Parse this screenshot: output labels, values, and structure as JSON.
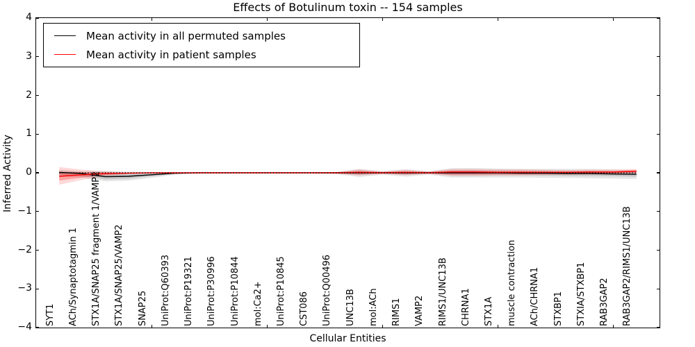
{
  "chart_data": {
    "type": "line",
    "title": "Effects of Botulinum toxin -- 154 samples",
    "xlabel": "Cellular Entities",
    "ylabel": "Inferred Activity",
    "xlim": [
      0,
      27
    ],
    "ylim": [
      -4,
      4
    ],
    "grid": false,
    "legend_position": "upper left",
    "ytick_values": [
      4,
      3,
      2,
      1,
      0,
      -1,
      -2,
      -3,
      -4
    ],
    "ytick_labels": [
      "4",
      "3",
      "2",
      "1",
      "0",
      "−1",
      "−2",
      "−3",
      "−4"
    ],
    "xtick_values": [
      5,
      10,
      15,
      20,
      25
    ],
    "zero_line": {
      "value": 0,
      "style": "dotted",
      "color": "#000000"
    },
    "categories": [
      "SYT1",
      "ACh/Synaptotagmin 1",
      "STX1A/SNAP25 fragment 1/VAMP2",
      "STX1A/SNAP25/VAMP2",
      "SNAP25",
      "UniProt:Q60393",
      "UniProt:P19321",
      "UniProt:P30996",
      "UniProt:P10844",
      "mol:Ca2+",
      "UniProt:P10845",
      "CST086",
      "UniProt:Q00496",
      "UNC13B",
      "mol:ACh",
      "RIMS1",
      "VAMP2",
      "RIMS1/UNC13B",
      "CHRNA1",
      "STX1A",
      "muscle contraction",
      "ACh/CHRNA1",
      "STXBP1",
      "STXIA/STXBP1",
      "RAB3GAP2",
      "RAB3GAP2/RIMS1/UNC13B"
    ],
    "series": [
      {
        "name": "Mean activity in all permuted samples",
        "color": "#000000",
        "band_color": "#000000",
        "band_opacity_outer": 0.1,
        "band_opacity_inner": 0.13,
        "mean": [
          0.01,
          -0.02,
          -0.1,
          -0.09,
          -0.05,
          -0.01,
          0,
          0,
          0,
          0,
          0,
          0,
          0,
          0,
          0,
          0,
          0,
          0,
          0,
          0,
          -0.01,
          -0.01,
          -0.02,
          -0.02,
          -0.03,
          -0.04
        ],
        "band_outer": {
          "upper": [
            0.08,
            0.04,
            0.05,
            0.03,
            0.02,
            0.01,
            0.01,
            0.01,
            0.01,
            0.01,
            0.01,
            0.01,
            0.02,
            0.1,
            0.04,
            0.09,
            0.04,
            0.12,
            0.12,
            0.11,
            0.1,
            0.1,
            0.1,
            0.1,
            0.09,
            0.06
          ],
          "lower": [
            -0.1,
            -0.12,
            -0.22,
            -0.2,
            -0.13,
            -0.05,
            -0.02,
            -0.01,
            -0.01,
            -0.01,
            -0.01,
            -0.02,
            -0.03,
            -0.11,
            -0.05,
            -0.1,
            -0.05,
            -0.12,
            -0.12,
            -0.12,
            -0.12,
            -0.13,
            -0.13,
            -0.14,
            -0.15,
            -0.16
          ]
        },
        "band_inner": {
          "upper": [
            0.04,
            0.01,
            -0.03,
            -0.03,
            -0.02,
            0,
            0,
            0,
            0,
            0,
            0,
            0,
            0.01,
            0.05,
            0.02,
            0.04,
            0.02,
            0.06,
            0.06,
            0.05,
            0.05,
            0.05,
            0.04,
            0.04,
            0.03,
            0.01
          ],
          "lower": [
            -0.05,
            -0.08,
            -0.17,
            -0.15,
            -0.09,
            -0.03,
            -0.01,
            0,
            0,
            0,
            0,
            -0.01,
            -0.02,
            -0.05,
            -0.02,
            -0.05,
            -0.02,
            -0.06,
            -0.06,
            -0.06,
            -0.06,
            -0.07,
            -0.08,
            -0.08,
            -0.09,
            -0.1
          ]
        }
      },
      {
        "name": "Mean activity in patient samples",
        "color": "#ff0000",
        "band_color": "#ff0000",
        "band_opacity_outer": 0.15,
        "band_opacity_inner": 0.25,
        "mean": [
          -0.09,
          -0.05,
          -0.02,
          -0.01,
          0,
          0,
          0,
          0,
          0,
          0,
          0,
          0,
          0,
          0.01,
          0,
          0.01,
          0,
          0.02,
          0.02,
          0.01,
          0.01,
          0.01,
          0.01,
          0.02,
          0.02,
          0.04
        ],
        "band_outer": {
          "upper": [
            0.15,
            0.08,
            0.03,
            0.01,
            0.01,
            0.01,
            0.01,
            0.01,
            0.01,
            0.01,
            0.01,
            0.01,
            0.02,
            0.09,
            0.03,
            0.08,
            0.03,
            0.1,
            0.1,
            0.09,
            0.09,
            0.08,
            0.07,
            0.08,
            0.08,
            0.1
          ],
          "lower": [
            -0.31,
            -0.18,
            -0.08,
            -0.03,
            -0.01,
            -0.01,
            -0.01,
            -0.01,
            -0.01,
            -0.01,
            -0.01,
            -0.01,
            -0.02,
            -0.07,
            -0.03,
            -0.06,
            -0.03,
            -0.08,
            -0.08,
            -0.07,
            -0.07,
            -0.06,
            -0.05,
            -0.05,
            -0.04,
            -0.02
          ]
        },
        "band_inner": {
          "upper": [
            0.03,
            0.02,
            0.01,
            0,
            0,
            0,
            0,
            0,
            0,
            0,
            0,
            0,
            0.01,
            0.05,
            0.02,
            0.04,
            0.02,
            0.06,
            0.06,
            0.05,
            0.05,
            0.04,
            0.04,
            0.05,
            0.05,
            0.07
          ],
          "lower": [
            -0.2,
            -0.12,
            -0.05,
            -0.02,
            -0.01,
            0,
            0,
            0,
            0,
            0,
            0,
            -0.01,
            -0.01,
            -0.03,
            -0.01,
            -0.03,
            -0.01,
            -0.04,
            -0.04,
            -0.03,
            -0.03,
            -0.03,
            -0.02,
            -0.02,
            -0.01,
            0.01
          ]
        }
      }
    ]
  }
}
